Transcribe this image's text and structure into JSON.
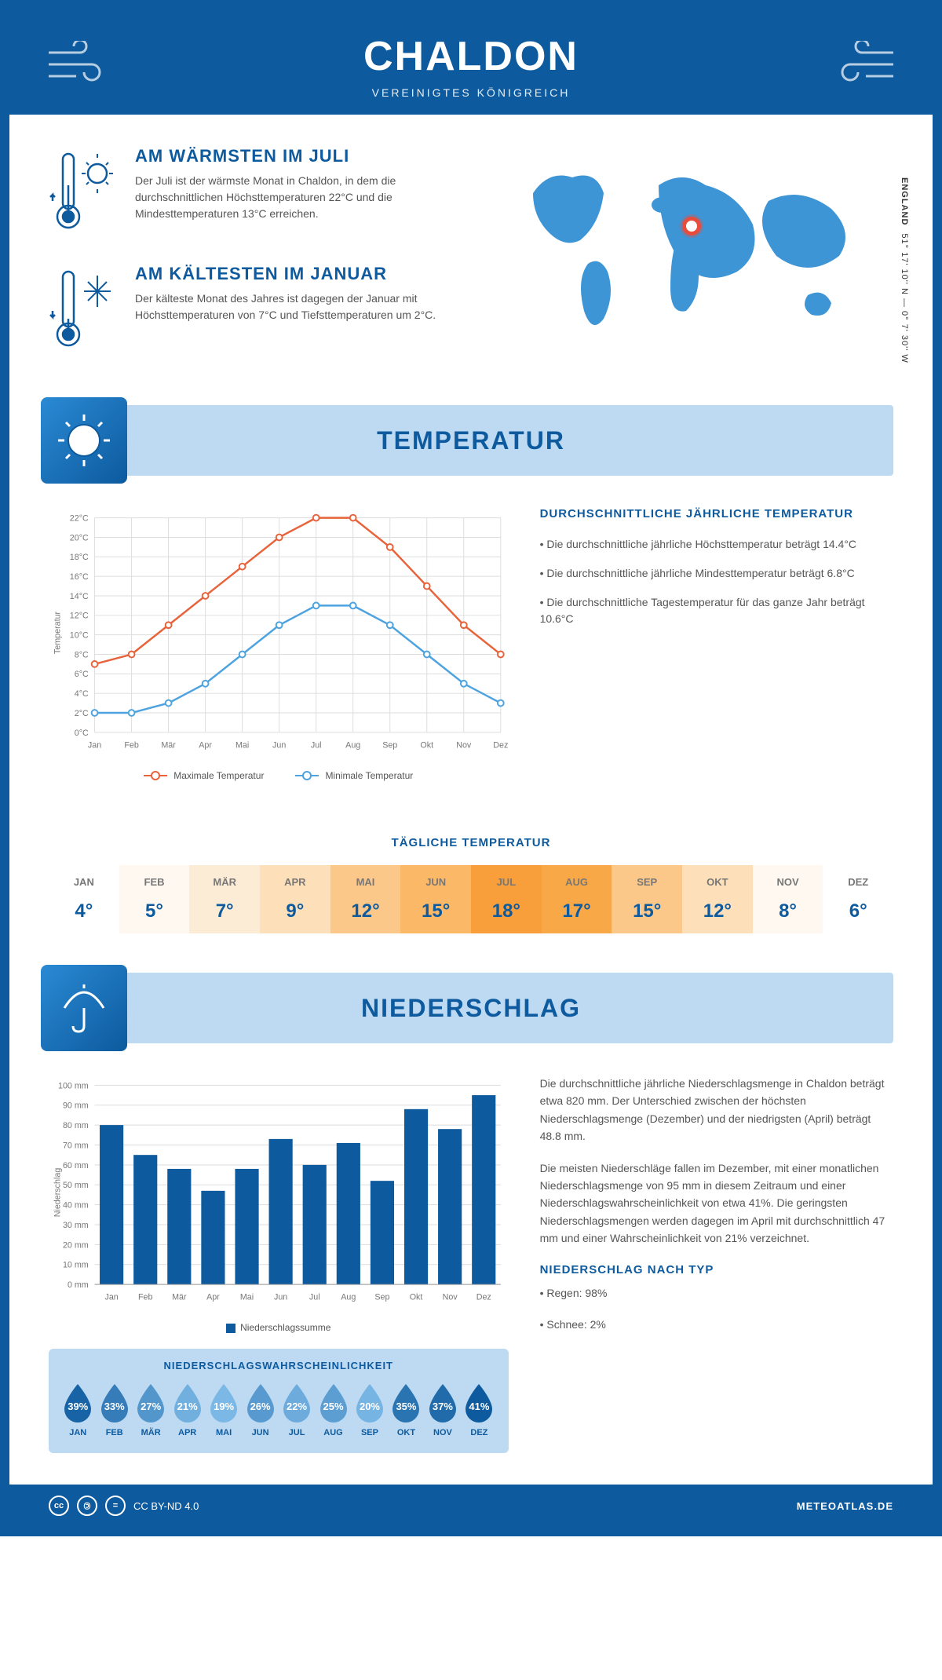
{
  "header": {
    "title": "CHALDON",
    "subtitle": "VEREINIGTES KÖNIGREICH"
  },
  "coords": {
    "line": "51° 17' 10'' N — 0° 7' 30'' W",
    "region": "ENGLAND"
  },
  "marker": {
    "left_pct": 48,
    "top_pct": 32
  },
  "warmest": {
    "title": "AM WÄRMSTEN IM JULI",
    "text": "Der Juli ist der wärmste Monat in Chaldon, in dem die durchschnittlichen Höchsttemperaturen 22°C und die Mindesttemperaturen 13°C erreichen."
  },
  "coldest": {
    "title": "AM KÄLTESTEN IM JANUAR",
    "text": "Der kälteste Monat des Jahres ist dagegen der Januar mit Höchsttemperaturen von 7°C und Tiefsttemperaturen um 2°C."
  },
  "temp_section": {
    "title": "TEMPERATUR",
    "info_title": "DURCHSCHNITTLICHE JÄHRLICHE TEMPERATUR",
    "bullets": [
      "• Die durchschnittliche jährliche Höchsttemperatur beträgt 14.4°C",
      "• Die durchschnittliche jährliche Mindesttemperatur beträgt 6.8°C",
      "• Die durchschnittliche Tagestemperatur für das ganze Jahr beträgt 10.6°C"
    ],
    "legend_max": "Maximale Temperatur",
    "legend_min": "Minimale Temperatur",
    "axis_label": "Temperatur",
    "y_min": 0,
    "y_max": 22,
    "y_step": 2,
    "months": [
      "Jan",
      "Feb",
      "Mär",
      "Apr",
      "Mai",
      "Jun",
      "Jul",
      "Aug",
      "Sep",
      "Okt",
      "Nov",
      "Dez"
    ],
    "max": [
      7,
      8,
      11,
      14,
      17,
      20,
      22,
      22,
      19,
      15,
      11,
      8
    ],
    "min": [
      2,
      2,
      3,
      5,
      8,
      11,
      13,
      13,
      11,
      8,
      5,
      3
    ],
    "max_color": "#e8623a",
    "min_color": "#4da3e0"
  },
  "daily": {
    "title": "TÄGLICHE TEMPERATUR",
    "months": [
      "JAN",
      "FEB",
      "MÄR",
      "APR",
      "MAI",
      "JUN",
      "JUL",
      "AUG",
      "SEP",
      "OKT",
      "NOV",
      "DEZ"
    ],
    "values": [
      4,
      5,
      7,
      9,
      12,
      15,
      18,
      17,
      15,
      12,
      8,
      6
    ],
    "colors": [
      "#ffffff",
      "#fef8f0",
      "#fdecd5",
      "#fde0ba",
      "#fcc88a",
      "#fbb867",
      "#f89e3a",
      "#f9a848",
      "#fcc88a",
      "#fde0ba",
      "#fef8f0",
      "#ffffff"
    ]
  },
  "precip_section": {
    "title": "NIEDERSCHLAG",
    "axis_label": "Niederschlag",
    "y_max": 100,
    "y_step": 10,
    "months": [
      "Jan",
      "Feb",
      "Mär",
      "Apr",
      "Mai",
      "Jun",
      "Jul",
      "Aug",
      "Sep",
      "Okt",
      "Nov",
      "Dez"
    ],
    "values": [
      80,
      65,
      58,
      47,
      58,
      73,
      60,
      71,
      52,
      88,
      78,
      95
    ],
    "bar_color": "#0d5a9e",
    "legend": "Niederschlagssumme",
    "text1": "Die durchschnittliche jährliche Niederschlagsmenge in Chaldon beträgt etwa 820 mm. Der Unterschied zwischen der höchsten Niederschlagsmenge (Dezember) und der niedrigsten (April) beträgt 48.8 mm.",
    "text2": "Die meisten Niederschläge fallen im Dezember, mit einer monatlichen Niederschlagsmenge von 95 mm in diesem Zeitraum und einer Niederschlagswahrscheinlichkeit von etwa 41%. Die geringsten Niederschlagsmengen werden dagegen im April mit durchschnittlich 47 mm und einer Wahrscheinlichkeit von 21% verzeichnet.",
    "type_title": "NIEDERSCHLAG NACH TYP",
    "type_bullets": [
      "• Regen: 98%",
      "• Schnee: 2%"
    ]
  },
  "prob": {
    "title": "NIEDERSCHLAGSWAHRSCHEINLICHKEIT",
    "months": [
      "JAN",
      "FEB",
      "MÄR",
      "APR",
      "MAI",
      "JUN",
      "JUL",
      "AUG",
      "SEP",
      "OKT",
      "NOV",
      "DEZ"
    ],
    "values": [
      39,
      33,
      27,
      21,
      19,
      26,
      22,
      25,
      20,
      35,
      37,
      41
    ],
    "min": 19,
    "max": 41,
    "color_light": "#7bb8e6",
    "color_dark": "#0d5a9e"
  },
  "footer": {
    "license": "CC BY-ND 4.0",
    "site": "METEOATLAS.DE"
  }
}
